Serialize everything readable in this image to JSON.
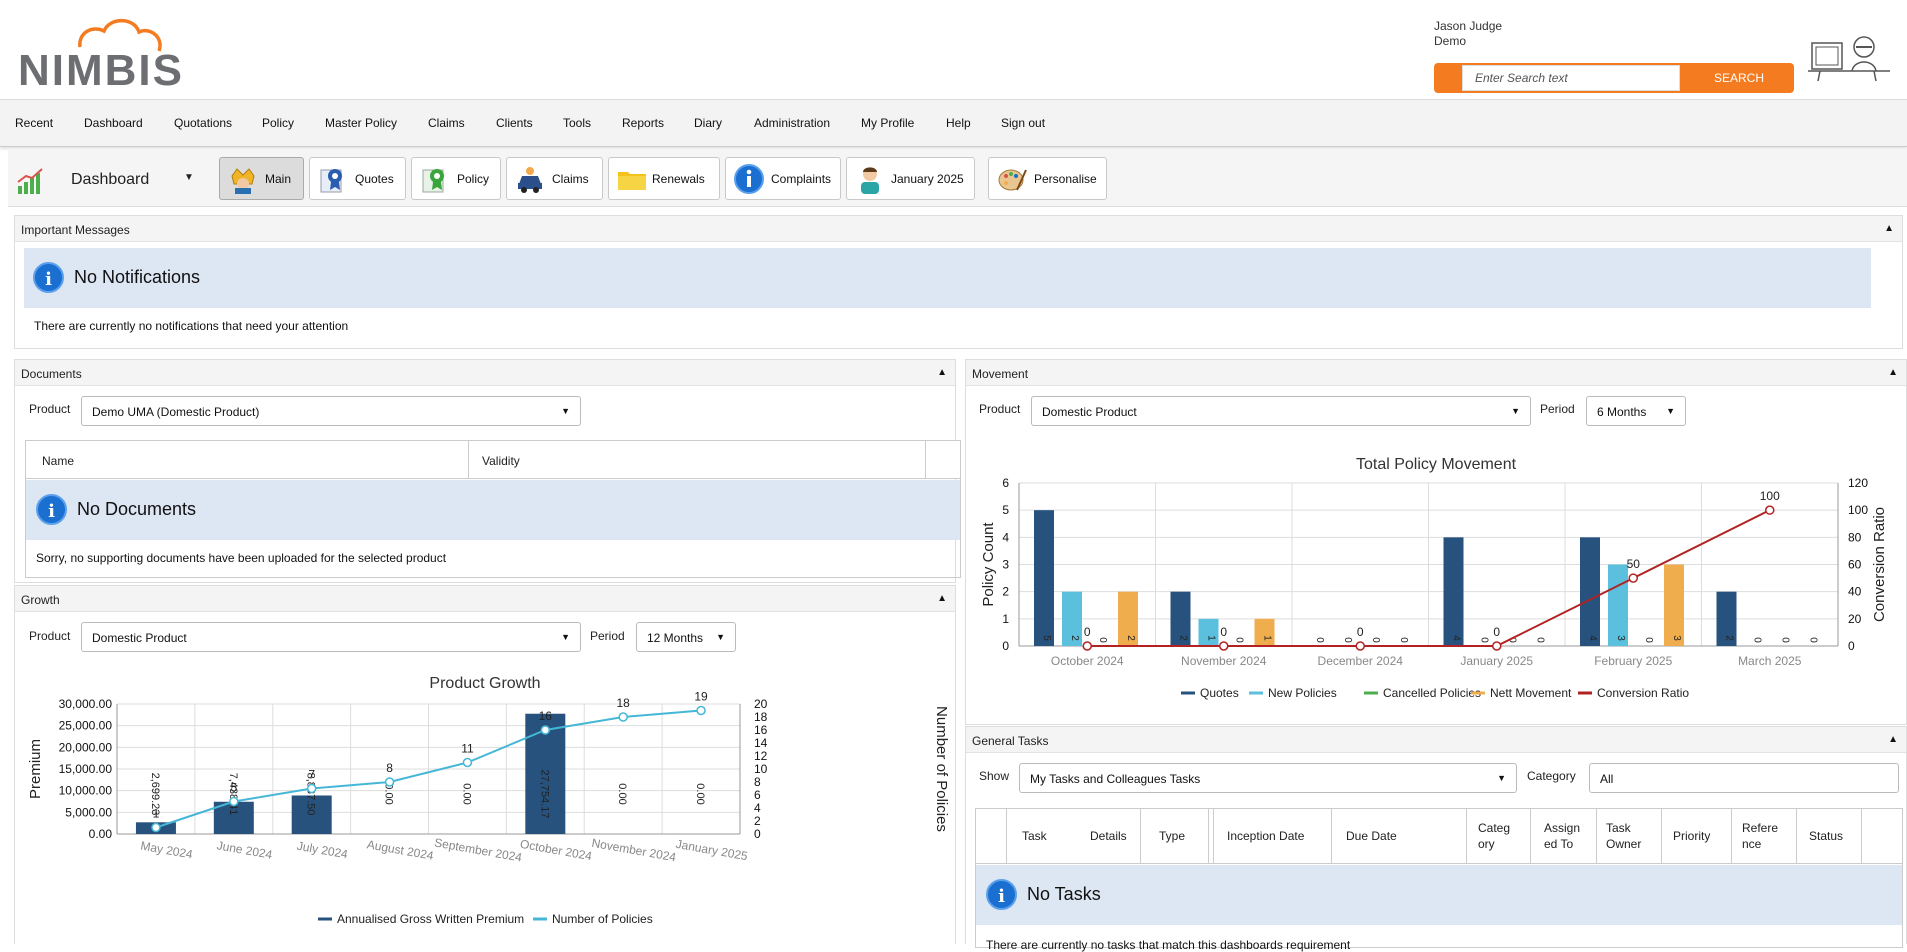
{
  "header": {
    "logo_text": "NIMBIS",
    "user_name": "Jason Judge",
    "user_company": "Demo",
    "search_placeholder": "Enter Search text",
    "search_button": "SEARCH"
  },
  "menu": [
    "Recent",
    "Dashboard",
    "Quotations",
    "Policy",
    "Master Policy",
    "Claims",
    "Clients",
    "Tools",
    "Reports",
    "Diary",
    "Administration",
    "My Profile",
    "Help",
    "Sign out"
  ],
  "dashbar": {
    "title": "Dashboard",
    "buttons": [
      {
        "label": "Main",
        "icon": "king-icon",
        "active": true
      },
      {
        "label": "Quotes",
        "icon": "quote-rosette-icon",
        "active": false
      },
      {
        "label": "Policy",
        "icon": "policy-rosette-icon",
        "active": false
      },
      {
        "label": "Claims",
        "icon": "car-claim-icon",
        "active": false
      },
      {
        "label": "Renewals",
        "icon": "folder-icon",
        "active": false
      },
      {
        "label": "Complaints",
        "icon": "info-icon",
        "active": false
      },
      {
        "label": "January 2025",
        "icon": "person-icon",
        "active": false
      },
      {
        "label": "Personalise",
        "icon": "palette-icon",
        "active": false
      }
    ]
  },
  "messages": {
    "title": "Important Messages",
    "heading": "No Notifications",
    "text": "There are currently no notifications that need your attention"
  },
  "documents": {
    "title": "Documents",
    "product_label": "Product",
    "product_value": "Demo UMA (Domestic Product)",
    "columns": [
      "Name",
      "Validity"
    ],
    "heading": "No Documents",
    "text": "Sorry, no supporting documents have been uploaded for the selected product"
  },
  "growth": {
    "title": "Growth",
    "product_label": "Product",
    "product_value": "Domestic Product",
    "period_label": "Period",
    "period_value": "12 Months"
  },
  "movement": {
    "title": "Movement",
    "product_label": "Product",
    "product_value": "Domestic Product",
    "period_label": "Period",
    "period_value": "6 Months"
  },
  "tasks": {
    "title": "General Tasks",
    "show_label": "Show",
    "show_value": "My Tasks and Colleagues Tasks",
    "category_label": "Category",
    "category_value": "All",
    "columns": [
      "Task",
      "Details",
      "Type",
      "Inception Date",
      "Due Date",
      "Categ ory",
      "Assign ed To",
      "Task Owner",
      "Priority",
      "Refere nce",
      "Status"
    ],
    "heading": "No Tasks",
    "text": "There are currently no tasks that match this dashboards requirement"
  },
  "colors": {
    "orange": "#f47b20",
    "navy": "#27527e",
    "lightblue": "#5bc0de",
    "green": "#4cae4c",
    "amber": "#f0ad4e",
    "red": "#b22222",
    "teal": "#45b7d6"
  },
  "chart_data": [
    {
      "type": "bar",
      "title": "Product Growth",
      "ylabel": "Premium",
      "y2label": "Number of Policies",
      "categories": [
        "May 2024",
        "June 2024",
        "July 2024",
        "August 2024",
        "September 2024",
        "October 2024",
        "November 2024",
        "January 2025"
      ],
      "ylim": [
        0,
        30000
      ],
      "y_ticks": [
        "0.00",
        "5,000.00",
        "10,000.00",
        "15,000.00",
        "20,000.00",
        "25,000.00",
        "30,000.00"
      ],
      "y2lim": [
        0,
        20
      ],
      "y2_ticks": [
        "0",
        "2",
        "4",
        "6",
        "8",
        "10",
        "12",
        "14",
        "16",
        "18",
        "20"
      ],
      "series": [
        {
          "name": "Annualised Gross Written Premium",
          "kind": "bar",
          "values": [
            2699.23,
            7438.41,
            8887.5,
            0,
            0,
            27754.17,
            0,
            0
          ],
          "labels": [
            "2,699.23",
            "7,438.41",
            "8,887.50",
            "0.00",
            "0.00",
            "27,754.17",
            "0.00",
            "0.00"
          ]
        },
        {
          "name": "Number of Policies",
          "kind": "line",
          "axis": "right",
          "values": [
            1,
            5,
            7,
            8,
            11,
            16,
            18,
            19
          ]
        }
      ]
    },
    {
      "type": "bar",
      "title": "Total Policy Movement",
      "ylabel": "Policy Count",
      "y2label": "Conversion Ratio",
      "categories": [
        "October 2024",
        "November 2024",
        "December 2024",
        "January 2025",
        "February 2025",
        "March 2025"
      ],
      "ylim": [
        0,
        6
      ],
      "y2lim": [
        0,
        120
      ],
      "y_ticks": [
        "0",
        "1",
        "2",
        "3",
        "4",
        "5",
        "6"
      ],
      "y2_ticks": [
        "0",
        "20",
        "40",
        "60",
        "80",
        "100",
        "120"
      ],
      "series": [
        {
          "name": "Quotes",
          "values": [
            5,
            2,
            0,
            4,
            4,
            2
          ]
        },
        {
          "name": "New Policies",
          "values": [
            2,
            1,
            0,
            0,
            3,
            0
          ]
        },
        {
          "name": "Cancelled Policies",
          "values": [
            0,
            0,
            0,
            0,
            0,
            0
          ]
        },
        {
          "name": "Nett Movement",
          "values": [
            2,
            1,
            0,
            0,
            3,
            0
          ]
        },
        {
          "name": "Conversion Ratio",
          "kind": "line",
          "axis": "right",
          "values": [
            0,
            0,
            0,
            0,
            50,
            100
          ]
        }
      ]
    }
  ]
}
